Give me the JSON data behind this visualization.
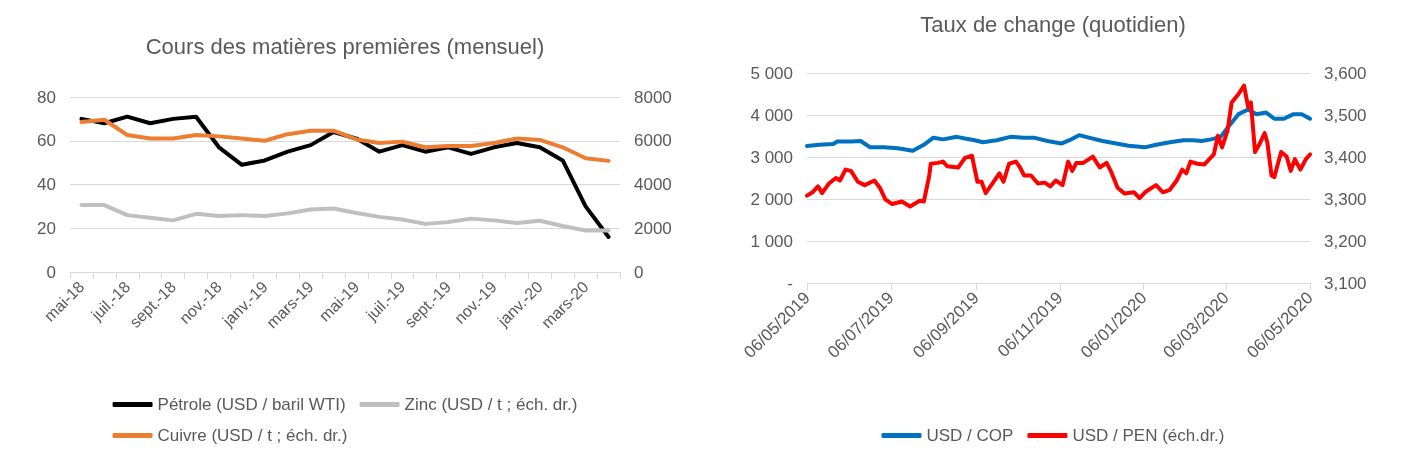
{
  "chart_data": [
    {
      "type": "line",
      "title": "Cours des matières premières (mensuel)",
      "categories": [
        "mai-18",
        null,
        "juil.-18",
        null,
        "sept.-18",
        null,
        "nov.-18",
        null,
        "janv.-19",
        null,
        "mars-19",
        null,
        "mai-19",
        null,
        "juil.-19",
        null,
        "sept.-19",
        null,
        "nov.-19",
        null,
        "janv.-20",
        null,
        "mars-20",
        null
      ],
      "series": [
        {
          "name": "Pétrole (USD / baril WTI)",
          "color": "#000000",
          "values": [
            70,
            68,
            71,
            68,
            70,
            71,
            57,
            49,
            51,
            55,
            58,
            64,
            61,
            55,
            58,
            55,
            57,
            54,
            57,
            59,
            57,
            51,
            30,
            16
          ]
        },
        {
          "name": "Zinc (USD / t ; éch. dr.)",
          "color": "#bfbfbf",
          "axis": "y2",
          "values": [
            3060,
            3060,
            2600,
            2480,
            2360,
            2660,
            2560,
            2600,
            2560,
            2680,
            2860,
            2900,
            2700,
            2520,
            2400,
            2200,
            2280,
            2440,
            2360,
            2240,
            2340,
            2100,
            1900,
            1900
          ]
        },
        {
          "name": "Cuivre (USD / t ; éch. dr.)",
          "color": "#ed7d31",
          "axis": "y2",
          "values": [
            6860,
            6960,
            6260,
            6100,
            6100,
            6260,
            6200,
            6100,
            6000,
            6300,
            6460,
            6460,
            6060,
            5900,
            5960,
            5700,
            5760,
            5760,
            5900,
            6100,
            6040,
            5700,
            5200,
            5080
          ]
        }
      ],
      "ylim": [
        0,
        80
      ],
      "yticks": [
        0,
        20,
        40,
        60,
        80
      ],
      "y2lim": [
        0,
        8000
      ],
      "y2ticks": [
        0,
        2000,
        4000,
        6000,
        8000
      ],
      "grid": "y",
      "legend": "bottom",
      "marker": "none",
      "line_style": "solid"
    },
    {
      "type": "line",
      "title": "Taux de change (quotidien)",
      "xlim": [
        "2019-05-06",
        "2020-05-06"
      ],
      "xticks": [
        {
          "value": "2019-05-06",
          "label": "06/05/2019"
        },
        {
          "value": "2019-07-06",
          "label": "06/07/2019"
        },
        {
          "value": "2019-09-06",
          "label": "06/09/2019"
        },
        {
          "value": "2019-11-06",
          "label": "06/11/2019"
        },
        {
          "value": "2020-01-06",
          "label": "06/01/2020"
        },
        {
          "value": "2020-03-06",
          "label": "06/03/2020"
        },
        {
          "value": "2020-05-06",
          "label": "06/05/2020"
        }
      ],
      "series": [
        {
          "name": "USD / COP",
          "color": "#0070c0",
          "x": [
            "2019-05-06",
            "2019-05-15",
            "2019-05-25",
            "2019-05-28",
            "2019-06-07",
            "2019-06-14",
            "2019-06-21",
            "2019-07-01",
            "2019-07-11",
            "2019-07-22",
            "2019-07-30",
            "2019-08-06",
            "2019-08-13",
            "2019-08-23",
            "2019-08-29",
            "2019-09-05",
            "2019-09-11",
            "2019-09-21",
            "2019-10-01",
            "2019-10-11",
            "2019-10-18",
            "2019-10-28",
            "2019-11-07",
            "2019-11-13",
            "2019-11-20",
            "2019-11-27",
            "2019-12-07",
            "2019-12-17",
            "2019-12-26",
            "2020-01-07",
            "2020-01-15",
            "2020-01-25",
            "2020-02-04",
            "2020-02-11",
            "2020-02-17",
            "2020-02-24",
            "2020-03-02",
            "2020-03-08",
            "2020-03-15",
            "2020-03-22",
            "2020-03-28",
            "2020-04-04",
            "2020-04-10",
            "2020-04-17",
            "2020-04-24",
            "2020-04-30",
            "2020-05-06"
          ],
          "values": [
            3260,
            3290,
            3310,
            3370,
            3370,
            3380,
            3230,
            3230,
            3210,
            3150,
            3290,
            3460,
            3420,
            3480,
            3440,
            3400,
            3350,
            3400,
            3480,
            3460,
            3460,
            3380,
            3320,
            3400,
            3520,
            3460,
            3380,
            3320,
            3270,
            3230,
            3290,
            3350,
            3400,
            3400,
            3380,
            3420,
            3480,
            3740,
            4020,
            4130,
            4020,
            4060,
            3910,
            3910,
            4020,
            4020,
            3910
          ]
        },
        {
          "name": "USD / PEN (éch.dr.)",
          "color": "#ff0000",
          "axis": "y2",
          "x": [
            "2019-05-06",
            "2019-05-10",
            "2019-05-14",
            "2019-05-17",
            "2019-05-22",
            "2019-05-27",
            "2019-05-30",
            "2019-06-03",
            "2019-06-07",
            "2019-06-12",
            "2019-06-17",
            "2019-06-24",
            "2019-06-28",
            "2019-07-02",
            "2019-07-07",
            "2019-07-14",
            "2019-07-20",
            "2019-07-27",
            "2019-07-30",
            "2019-08-03",
            "2019-08-04",
            "2019-08-09",
            "2019-08-13",
            "2019-08-16",
            "2019-08-24",
            "2019-08-29",
            "2019-09-03",
            "2019-09-07",
            "2019-09-10",
            "2019-09-13",
            "2019-09-18",
            "2019-09-23",
            "2019-09-26",
            "2019-09-30",
            "2019-10-05",
            "2019-10-08",
            "2019-10-11",
            "2019-10-16",
            "2019-10-21",
            "2019-10-26",
            "2019-10-30",
            "2019-11-03",
            "2019-11-08",
            "2019-11-12",
            "2019-11-15",
            "2019-11-18",
            "2019-11-23",
            "2019-11-30",
            "2019-12-05",
            "2019-12-10",
            "2019-12-13",
            "2019-12-18",
            "2019-12-23",
            "2019-12-30",
            "2020-01-03",
            "2020-01-07",
            "2020-01-12",
            "2020-01-15",
            "2020-01-20",
            "2020-01-25",
            "2020-01-30",
            "2020-02-03",
            "2020-02-06",
            "2020-02-09",
            "2020-02-14",
            "2020-02-19",
            "2020-02-26",
            "2020-02-29",
            "2020-03-03",
            "2020-03-07",
            "2020-03-10",
            "2020-03-15",
            "2020-03-19",
            "2020-03-22",
            "2020-03-24",
            "2020-03-27",
            "2020-03-30",
            "2020-04-03",
            "2020-04-05",
            "2020-04-08",
            "2020-04-10",
            "2020-04-15",
            "2020-04-19",
            "2020-04-22",
            "2020-04-25",
            "2020-04-29",
            "2020-05-03",
            "2020-05-06"
          ],
          "values": [
            3308,
            3316,
            3330,
            3314,
            3337,
            3350,
            3344,
            3370,
            3367,
            3341,
            3333,
            3344,
            3327,
            3299,
            3288,
            3294,
            3282,
            3296,
            3294,
            3356,
            3384,
            3386,
            3389,
            3378,
            3375,
            3398,
            3403,
            3341,
            3341,
            3314,
            3337,
            3361,
            3341,
            3384,
            3389,
            3375,
            3356,
            3356,
            3337,
            3339,
            3330,
            3344,
            3333,
            3389,
            3367,
            3386,
            3386,
            3401,
            3375,
            3386,
            3367,
            3327,
            3313,
            3316,
            3302,
            3316,
            3327,
            3333,
            3316,
            3322,
            3344,
            3370,
            3361,
            3389,
            3384,
            3382,
            3406,
            3451,
            3423,
            3463,
            3530,
            3550,
            3570,
            3519,
            3530,
            3412,
            3429,
            3457,
            3434,
            3356,
            3352,
            3412,
            3401,
            3367,
            3395,
            3370,
            3395,
            3406
          ]
        }
      ],
      "ylim": [
        0,
        5000
      ],
      "yticks": [
        {
          "value": 0,
          "label": "-"
        },
        {
          "value": 1000,
          "label": "1 000"
        },
        {
          "value": 2000,
          "label": "2 000"
        },
        {
          "value": 3000,
          "label": "3 000"
        },
        {
          "value": 4000,
          "label": "4 000"
        },
        {
          "value": 5000,
          "label": "5 000"
        }
      ],
      "y2lim": [
        3100,
        3600
      ],
      "y2ticks": [
        {
          "value": 3100,
          "label": "3,100"
        },
        {
          "value": 3200,
          "label": "3,200"
        },
        {
          "value": 3300,
          "label": "3,300"
        },
        {
          "value": 3400,
          "label": "3,400"
        },
        {
          "value": 3500,
          "label": "3,500"
        },
        {
          "value": 3600,
          "label": "3,600"
        }
      ],
      "grid": "y",
      "legend": "bottom",
      "marker": "none",
      "line_style": "solid"
    }
  ]
}
